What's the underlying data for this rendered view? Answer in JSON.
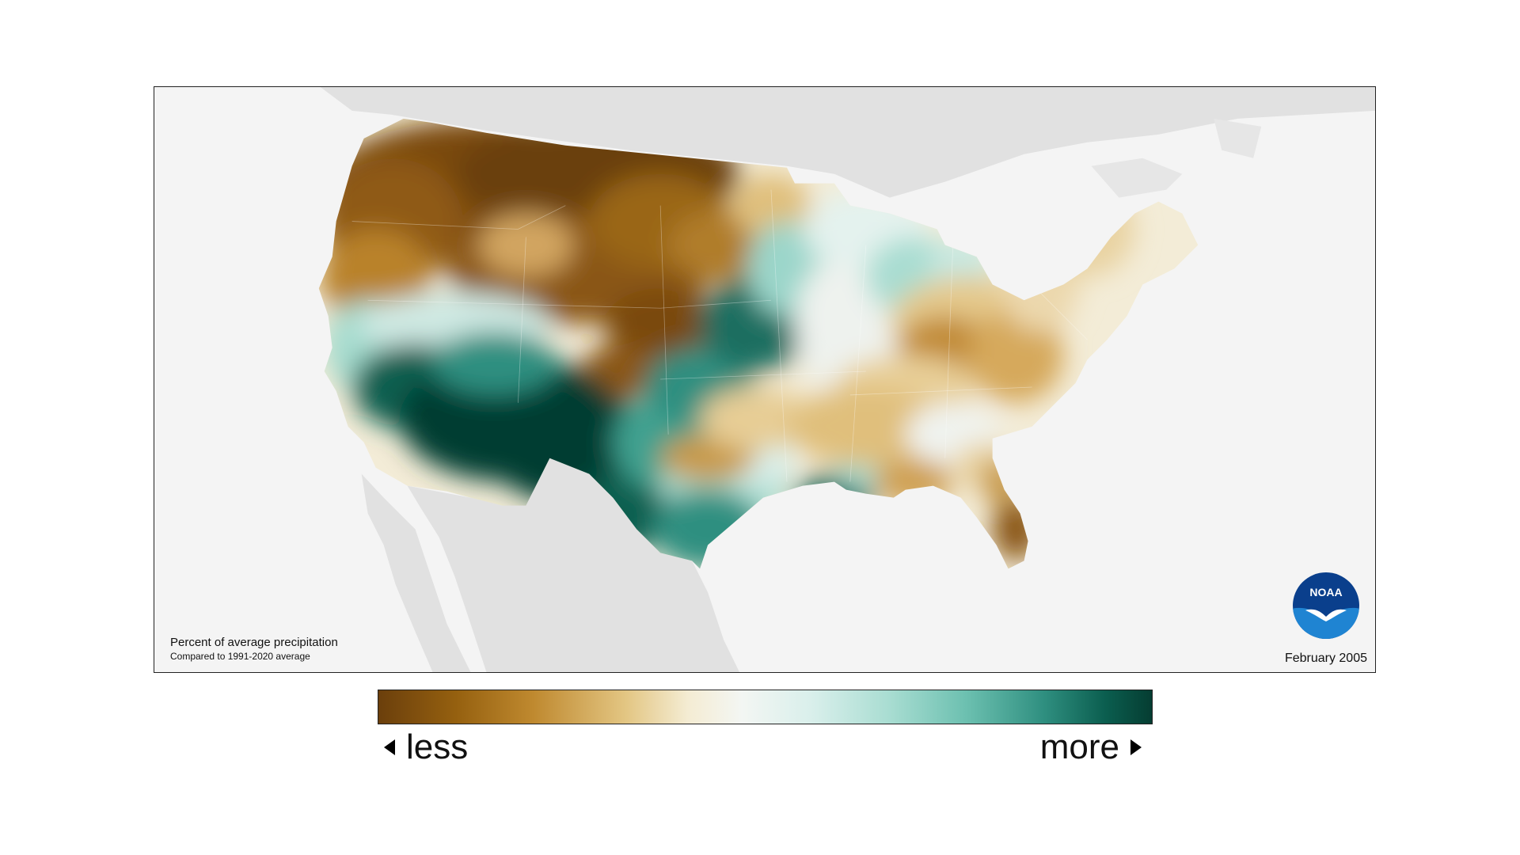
{
  "map": {
    "caption_title": "Percent of average precipitation",
    "caption_subtitle": "Compared to 1991-2020 average",
    "date": "February 2005",
    "logo_text": "NOAA"
  },
  "legend": {
    "less_label": "less",
    "more_label": "more",
    "colors": [
      "#6b3f0c",
      "#95600f",
      "#bf892f",
      "#e3c683",
      "#f4ecd3",
      "#f3f6f3",
      "#d9efeb",
      "#a9ddd2",
      "#6cc0b0",
      "#2f8f80",
      "#0b5e4f",
      "#053d32"
    ]
  },
  "icons": {
    "left_arrow": "triangle-left-icon",
    "right_arrow": "triangle-right-icon",
    "logo": "noaa-logo-icon"
  }
}
